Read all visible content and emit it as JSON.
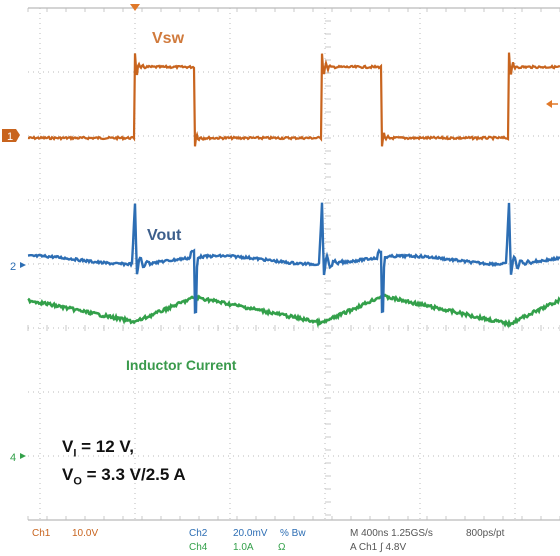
{
  "colors": {
    "grid": "#bbbbbb",
    "ch1": "#c8641e",
    "ch2": "#2d6eb4",
    "ch4": "#33a04a",
    "background": "#ffffff"
  },
  "labels": {
    "vsw": "Vsw",
    "vout": "Vout",
    "inductor": "Inductor Current"
  },
  "markers": {
    "ch1": "1",
    "ch2": "2",
    "ch4": "4"
  },
  "conditions": {
    "v_sym": "V",
    "v_i_sub": "I",
    "v_i_val": " = 12 V,",
    "v_o_sub": "O",
    "v_o_val": " = 3.3 V/2.5 A"
  },
  "status": {
    "ch1_name": "Ch1",
    "ch1_scale": "10.0V",
    "ch2_name": "Ch2",
    "ch2_scale": "20.0mV",
    "ch2_coupling": "% Bw",
    "ch4_name": "Ch4",
    "ch4_scale": "1.0A",
    "ch4_coupling": "Ω",
    "timebase": "M 400ns 1.25GS/s",
    "record": "800ps/pt",
    "trigger": "A Ch1 ∫ 4.8V"
  }
}
